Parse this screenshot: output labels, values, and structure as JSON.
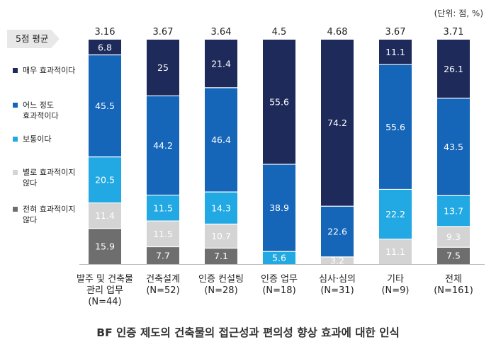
{
  "unit_note": "(단위: 점, %)",
  "avg_label": "5점 평균",
  "chart_data": {
    "type": "bar",
    "stacked": true,
    "normalized": true,
    "title": "BF 인증 제도의 건축물의 접근성과 편의성 향상 효과에 대한 인식",
    "categories": [
      [
        "발주 및 건축물",
        "관리 업무",
        "(N=44)"
      ],
      [
        "건축설계",
        "(N=52)"
      ],
      [
        "인증 컨설팅",
        "(N=28)"
      ],
      [
        "인증 업무",
        "(N=18)"
      ],
      [
        "심사·심의",
        "(N=31)"
      ],
      [
        "기타",
        "(N=9)"
      ],
      [
        "전체",
        "(N=161)"
      ]
    ],
    "averages": [
      "3.16",
      "3.67",
      "3.64",
      "4.5",
      "4.68",
      "3.67",
      "3.71"
    ],
    "series": [
      {
        "name": "매우 효과적이다",
        "label_lines": [
          "매우 효과적이다"
        ],
        "color": "#1e2a5a",
        "text_color": "#ffffff",
        "values": [
          "6.8",
          "25",
          "21.4",
          "55.6",
          "74.2",
          "11.1",
          "26.1"
        ]
      },
      {
        "name": "어느 정도 효과적이다",
        "label_lines": [
          "어느 정도",
          "효과적이다"
        ],
        "color": "#1565b8",
        "text_color": "#ffffff",
        "values": [
          "45.5",
          "44.2",
          "46.4",
          "38.9",
          "22.6",
          "55.6",
          "43.5"
        ]
      },
      {
        "name": "보통이다",
        "label_lines": [
          "보통이다"
        ],
        "color": "#22a8e3",
        "text_color": "#ffffff",
        "values": [
          "20.5",
          "11.5",
          "14.3",
          "5.6",
          "",
          "22.2",
          "13.7"
        ]
      },
      {
        "name": "별로 효과적이지 않다",
        "label_lines": [
          "별로 효과적이지",
          "않다"
        ],
        "color": "#d4d4d4",
        "text_color": "#ffffff",
        "values": [
          "11.4",
          "11.5",
          "10.7",
          "",
          "3.2",
          "11.1",
          "9.3"
        ]
      },
      {
        "name": "전혀 효과적이지 않다",
        "label_lines": [
          "전혀 효과적이지",
          "않다"
        ],
        "color": "#6e6e6e",
        "text_color": "#ffffff",
        "values": [
          "15.9",
          "7.7",
          "7.1",
          "",
          "",
          "",
          "7.5"
        ]
      }
    ],
    "ylim": [
      0,
      100
    ],
    "legend_position": "left"
  }
}
